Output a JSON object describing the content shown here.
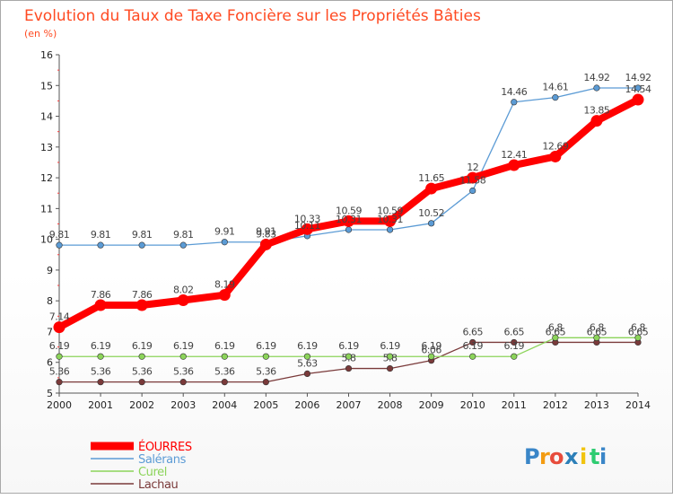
{
  "chart_data": {
    "type": "line",
    "title": "Evolution du Taux de Taxe Foncière sur les Propriétés Bâties",
    "subtitle": "(en %)",
    "x": [
      2000,
      2001,
      2002,
      2003,
      2004,
      2005,
      2006,
      2007,
      2008,
      2009,
      2010,
      2011,
      2012,
      2013,
      2014
    ],
    "ylim": [
      5,
      16
    ],
    "yticks": [
      5,
      6,
      7,
      8,
      9,
      10,
      11,
      12,
      13,
      14,
      15,
      16
    ],
    "grid": false,
    "legend_position": "bottom-left",
    "series": [
      {
        "name": "ÉOURRES",
        "color": "#ff0000",
        "values": [
          7.14,
          7.86,
          7.86,
          8.02,
          8.19,
          9.83,
          10.33,
          10.59,
          10.59,
          11.65,
          12,
          12.41,
          12.69,
          13.85,
          14.54
        ],
        "labels": [
          "7.14",
          "7.86",
          "7.86",
          "8.02",
          "8.19",
          "9.83",
          "10.33",
          "10.59",
          "10.59",
          "11.65",
          "12",
          "12.41",
          "12.69",
          "13.85",
          "14.54"
        ]
      },
      {
        "name": "Salérans",
        "color": "#5b9bd5",
        "values": [
          9.81,
          9.81,
          9.81,
          9.81,
          9.91,
          9.91,
          10.11,
          10.31,
          10.31,
          10.52,
          11.58,
          14.46,
          14.61,
          14.92,
          14.92
        ],
        "labels": [
          "9.81",
          "9.81",
          "9.81",
          "9.81",
          "9.91",
          "9.91",
          "10.11",
          "10.31",
          "10.31",
          "10.52",
          "11.58",
          "14.46",
          "14.61",
          "14.92",
          "14.92"
        ]
      },
      {
        "name": "Curel",
        "color": "#8cd45a",
        "values": [
          6.19,
          6.19,
          6.19,
          6.19,
          6.19,
          6.19,
          6.19,
          6.19,
          6.19,
          6.19,
          6.19,
          6.19,
          6.8,
          6.8,
          6.8
        ],
        "labels": [
          "6.19",
          "6.19",
          "6.19",
          "6.19",
          "6.19",
          "6.19",
          "6.19",
          "6.19",
          "6.19",
          "6.19",
          "6.19",
          "6.19",
          "6.8",
          "6.8",
          "6.8"
        ]
      },
      {
        "name": "Lachau",
        "color": "#7a3a3a",
        "values": [
          5.36,
          5.36,
          5.36,
          5.36,
          5.36,
          5.36,
          5.63,
          5.8,
          5.8,
          6.06,
          6.65,
          6.65,
          6.65,
          6.65,
          6.65
        ],
        "labels": [
          "5.36",
          "5.36",
          "5.36",
          "5.36",
          "5.36",
          "5.36",
          "5.63",
          "5.8",
          "5.8",
          "6.06",
          "6.65",
          "6.65",
          "6.65",
          "6.65",
          "6.65"
        ]
      }
    ]
  },
  "brand": {
    "letters": [
      "P",
      "r",
      "o",
      "x",
      "i",
      "t",
      "i"
    ],
    "colors": [
      "#3a86c8",
      "#f39c12",
      "#e74c3c",
      "#2c7fb8",
      "#f1c40f",
      "#2ecc71",
      "#3a86c8"
    ]
  }
}
